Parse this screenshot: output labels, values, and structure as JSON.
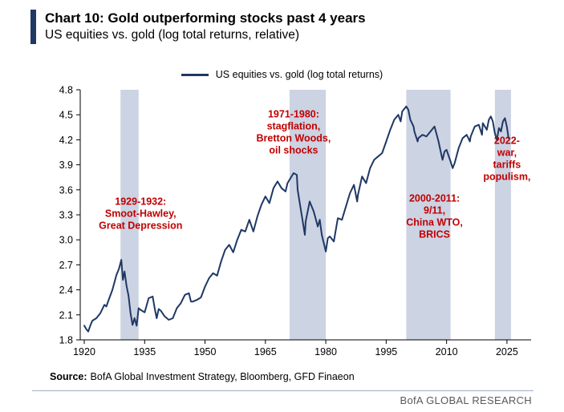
{
  "header": {
    "title": "Chart 10: Gold outperforming stocks past 4 years",
    "subtitle": "US equities vs. gold (log total returns, relative)",
    "accent_color": "#1f3864"
  },
  "chart_data": {
    "type": "line",
    "title": "Gold outperforming stocks past 4 years",
    "legend": "US equities vs. gold (log total returns)",
    "line_color": "#1f3864",
    "band_color": "#ccd3e3",
    "annotation_color": "#c00000",
    "axis_color": "#000000",
    "xlim": [
      1919,
      2031
    ],
    "ylim": [
      1.8,
      4.8
    ],
    "x_ticks": [
      1920,
      1935,
      1950,
      1965,
      1980,
      1995,
      2010,
      2025
    ],
    "y_ticks": [
      1.8,
      2.1,
      2.4,
      2.7,
      3.0,
      3.3,
      3.6,
      3.9,
      4.2,
      4.5,
      4.8
    ],
    "grid": false,
    "legend_position": "top-center",
    "bands": [
      {
        "from": 1929,
        "to": 1933.5,
        "label": "Smoot-Hawley, Great Depression"
      },
      {
        "from": 1971,
        "to": 1980,
        "label": "stagflation, Bretton Woods, oil shocks"
      },
      {
        "from": 2000,
        "to": 2011,
        "label": "9/11, China WTO, BRICS"
      },
      {
        "from": 2022,
        "to": 2026,
        "label": "war, tariffs, populism"
      }
    ],
    "annotations": [
      {
        "year": 1934,
        "value": 3.42,
        "lines": [
          "1929-1932:",
          "Smoot-Hawley,",
          "Great Depression"
        ]
      },
      {
        "year": 1972,
        "value": 4.47,
        "lines": [
          "1971-1980:",
          "stagflation,",
          "Bretton Woods,",
          "oil shocks"
        ]
      },
      {
        "year": 2007,
        "value": 3.46,
        "lines": [
          "2000-2011:",
          "9/11,",
          "China WTO,",
          "BRICS"
        ]
      },
      {
        "year": 2025,
        "value": 4.15,
        "lines": [
          "2022-",
          "war,",
          "tariffs",
          "populism,"
        ]
      }
    ],
    "series": [
      {
        "name": "US equities vs. gold (log total returns)",
        "points": [
          [
            1920,
            1.97
          ],
          [
            1920.5,
            1.93
          ],
          [
            1921,
            1.9
          ],
          [
            1921.5,
            1.97
          ],
          [
            1922,
            2.03
          ],
          [
            1923,
            2.06
          ],
          [
            1924,
            2.12
          ],
          [
            1925,
            2.22
          ],
          [
            1925.5,
            2.2
          ],
          [
            1926,
            2.27
          ],
          [
            1927,
            2.4
          ],
          [
            1928,
            2.58
          ],
          [
            1928.6,
            2.65
          ],
          [
            1929.2,
            2.76
          ],
          [
            1929.6,
            2.52
          ],
          [
            1930,
            2.62
          ],
          [
            1930.5,
            2.45
          ],
          [
            1931,
            2.33
          ],
          [
            1931.5,
            2.12
          ],
          [
            1932,
            1.98
          ],
          [
            1932.5,
            2.06
          ],
          [
            1933,
            1.97
          ],
          [
            1933.5,
            2.18
          ],
          [
            1934,
            2.16
          ],
          [
            1935,
            2.13
          ],
          [
            1936,
            2.3
          ],
          [
            1937,
            2.32
          ],
          [
            1937.5,
            2.18
          ],
          [
            1938,
            2.06
          ],
          [
            1938.5,
            2.17
          ],
          [
            1939,
            2.15
          ],
          [
            1940,
            2.08
          ],
          [
            1941,
            2.04
          ],
          [
            1942,
            2.06
          ],
          [
            1943,
            2.18
          ],
          [
            1944,
            2.24
          ],
          [
            1945,
            2.34
          ],
          [
            1946,
            2.36
          ],
          [
            1946.5,
            2.26
          ],
          [
            1947,
            2.26
          ],
          [
            1948,
            2.28
          ],
          [
            1949,
            2.31
          ],
          [
            1950,
            2.44
          ],
          [
            1951,
            2.54
          ],
          [
            1952,
            2.6
          ],
          [
            1953,
            2.57
          ],
          [
            1954,
            2.74
          ],
          [
            1955,
            2.88
          ],
          [
            1956,
            2.94
          ],
          [
            1957,
            2.85
          ],
          [
            1958,
            3.0
          ],
          [
            1959,
            3.12
          ],
          [
            1960,
            3.1
          ],
          [
            1961,
            3.24
          ],
          [
            1962,
            3.1
          ],
          [
            1963,
            3.28
          ],
          [
            1964,
            3.42
          ],
          [
            1965,
            3.52
          ],
          [
            1966,
            3.44
          ],
          [
            1967,
            3.62
          ],
          [
            1968,
            3.7
          ],
          [
            1969,
            3.62
          ],
          [
            1970,
            3.58
          ],
          [
            1970.5,
            3.68
          ],
          [
            1971,
            3.72
          ],
          [
            1972,
            3.8
          ],
          [
            1972.8,
            3.78
          ],
          [
            1973,
            3.6
          ],
          [
            1974,
            3.3
          ],
          [
            1974.8,
            3.06
          ],
          [
            1975,
            3.22
          ],
          [
            1976,
            3.46
          ],
          [
            1977,
            3.34
          ],
          [
            1978,
            3.16
          ],
          [
            1978.5,
            3.24
          ],
          [
            1979,
            3.06
          ],
          [
            1980,
            2.86
          ],
          [
            1980.5,
            3.02
          ],
          [
            1981,
            3.04
          ],
          [
            1982,
            2.98
          ],
          [
            1982.5,
            3.12
          ],
          [
            1983,
            3.26
          ],
          [
            1984,
            3.24
          ],
          [
            1985,
            3.4
          ],
          [
            1986,
            3.56
          ],
          [
            1987,
            3.66
          ],
          [
            1987.8,
            3.46
          ],
          [
            1988,
            3.54
          ],
          [
            1989,
            3.76
          ],
          [
            1990,
            3.68
          ],
          [
            1991,
            3.86
          ],
          [
            1992,
            3.96
          ],
          [
            1993,
            4.0
          ],
          [
            1994,
            4.04
          ],
          [
            1995,
            4.18
          ],
          [
            1996,
            4.32
          ],
          [
            1997,
            4.44
          ],
          [
            1998,
            4.5
          ],
          [
            1998.6,
            4.42
          ],
          [
            1999,
            4.54
          ],
          [
            2000,
            4.6
          ],
          [
            2000.5,
            4.56
          ],
          [
            2001,
            4.44
          ],
          [
            2001.8,
            4.36
          ],
          [
            2002,
            4.3
          ],
          [
            2002.8,
            4.18
          ],
          [
            2003,
            4.22
          ],
          [
            2004,
            4.26
          ],
          [
            2005,
            4.24
          ],
          [
            2006,
            4.3
          ],
          [
            2007,
            4.36
          ],
          [
            2008,
            4.18
          ],
          [
            2008.8,
            4.0
          ],
          [
            2009,
            3.96
          ],
          [
            2009.5,
            4.06
          ],
          [
            2010,
            4.08
          ],
          [
            2011,
            3.94
          ],
          [
            2011.5,
            3.86
          ],
          [
            2012,
            3.92
          ],
          [
            2013,
            4.1
          ],
          [
            2014,
            4.22
          ],
          [
            2015,
            4.26
          ],
          [
            2015.8,
            4.18
          ],
          [
            2016,
            4.24
          ],
          [
            2017,
            4.36
          ],
          [
            2018,
            4.38
          ],
          [
            2018.8,
            4.26
          ],
          [
            2019,
            4.4
          ],
          [
            2020,
            4.32
          ],
          [
            2020.5,
            4.44
          ],
          [
            2021,
            4.48
          ],
          [
            2021.5,
            4.42
          ],
          [
            2022,
            4.28
          ],
          [
            2022.5,
            4.2
          ],
          [
            2023,
            4.34
          ],
          [
            2023.5,
            4.3
          ],
          [
            2024,
            4.42
          ],
          [
            2024.5,
            4.46
          ],
          [
            2025,
            4.35
          ],
          [
            2025.4,
            4.22
          ]
        ]
      }
    ]
  },
  "footer": {
    "source_label": "Source:",
    "source_text": "BofA Global Investment Strategy, Bloomberg, GFD Finaeon",
    "brand": "BofA GLOBAL RESEARCH"
  }
}
